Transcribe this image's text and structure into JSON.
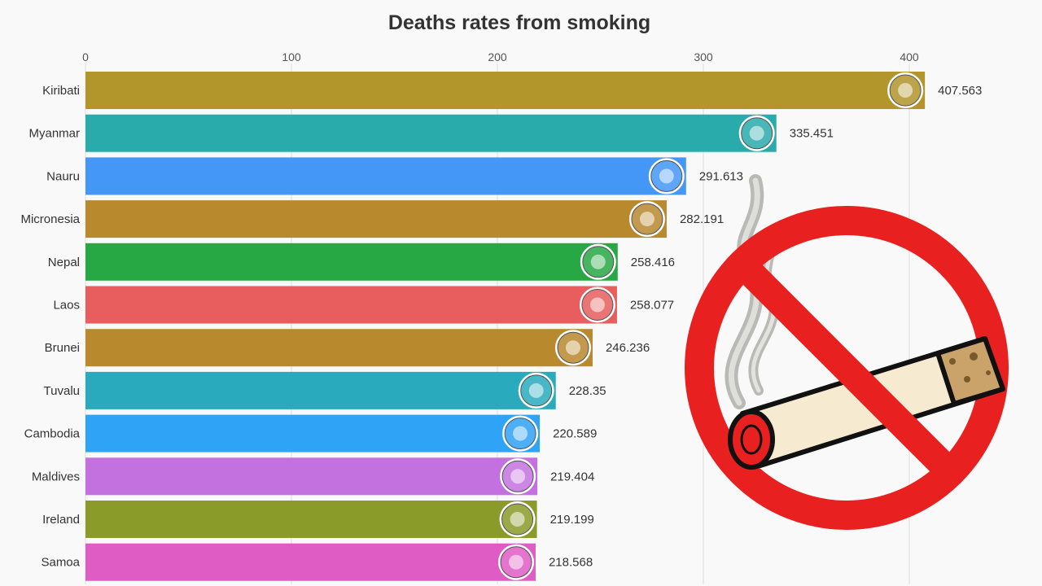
{
  "chart_data": {
    "type": "bar",
    "orientation": "horizontal",
    "title": "Deaths rates from smoking",
    "xlabel": "",
    "ylabel": "",
    "xlim": [
      0,
      420
    ],
    "x_ticks": [
      0,
      100,
      200,
      300,
      400
    ],
    "grid": true,
    "categories": [
      "Kiribati",
      "Myanmar",
      "Nauru",
      "Micronesia",
      "Nepal",
      "Laos",
      "Brunei",
      "Tuvalu",
      "Cambodia",
      "Maldives",
      "Ireland",
      "Samoa"
    ],
    "values": [
      407.563,
      335.451,
      291.613,
      282.191,
      258.416,
      258.077,
      246.236,
      228.35,
      220.589,
      219.404,
      219.199,
      218.568
    ],
    "value_labels": [
      "407.563",
      "335.451",
      "291.613",
      "282.191",
      "258.416",
      "258.077",
      "246.236",
      "228.35",
      "220.589",
      "219.404",
      "219.199",
      "218.568"
    ],
    "bar_colors": [
      "#b2952b",
      "#2aabab",
      "#4497f7",
      "#b9892e",
      "#28a745",
      "#e85d5d",
      "#b9892e",
      "#29abbd",
      "#2fa3f5",
      "#c471e0",
      "#8b9b29",
      "#e05cc5"
    ],
    "flag_icons": [
      "kiribati-flag-icon",
      "myanmar-flag-icon",
      "nauru-flag-icon",
      "micronesia-flag-icon",
      "nepal-flag-icon",
      "laos-flag-icon",
      "brunei-flag-icon",
      "tuvalu-flag-icon",
      "cambodia-flag-icon",
      "maldives-flag-icon",
      "ireland-flag-icon",
      "samoa-flag-icon"
    ],
    "legend": "none"
  },
  "illustration": {
    "icon": "no-smoking-icon",
    "ring_color": "#e8201f",
    "cigarette_body_color": "#f6ead0",
    "filter_color": "#c9a36a",
    "ember_color": "#e8201f",
    "smoke_color": "#c8c8c4"
  }
}
